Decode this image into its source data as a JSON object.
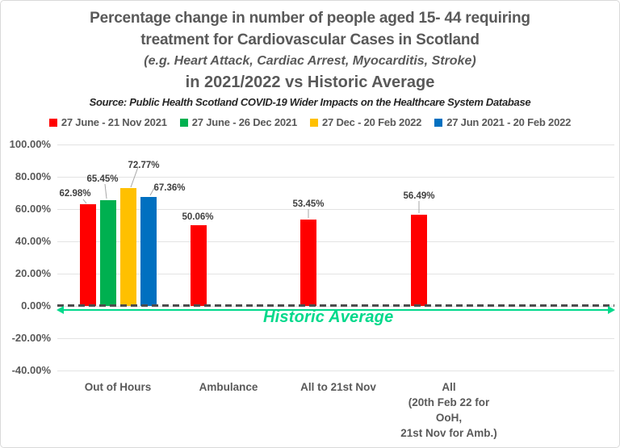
{
  "title": {
    "line1": "Percentage change in number of people aged 15- 44 requiring",
    "line2": "treatment for Cardiovascular Cases in Scotland",
    "line3": "(e.g. Heart Attack, Cardiac Arrest, Myocarditis, Stroke)",
    "line4": "in 2021/2022 vs Historic Average",
    "source": "Source: Public Health Scotland COVID-19 Wider Impacts on the Healthcare System Database"
  },
  "chart_data": {
    "type": "bar",
    "categories": [
      [
        "Out of Hours"
      ],
      [
        "Ambulance"
      ],
      [
        "All to 21st Nov"
      ],
      [
        "All",
        "(20th Feb 22 for",
        "OoH,",
        "21st Nov for Amb.)"
      ]
    ],
    "series": [
      {
        "name": "27 June - 21 Nov 2021",
        "color": "#ff0000",
        "values": [
          62.98,
          50.06,
          53.45,
          56.49
        ]
      },
      {
        "name": "27 June - 26 Dec 2021",
        "color": "#00b050",
        "values": [
          65.45,
          null,
          null,
          null
        ]
      },
      {
        "name": "27 Dec - 20 Feb 2022",
        "color": "#ffc000",
        "values": [
          72.77,
          null,
          null,
          null
        ]
      },
      {
        "name": "27 Jun 2021 - 20 Feb 2022",
        "color": "#0070c0",
        "values": [
          67.36,
          null,
          null,
          null
        ]
      }
    ],
    "data_labels": [
      "62.98%",
      "65.45%",
      "72.77%",
      "67.36%",
      "50.06%",
      "53.45%",
      "56.49%"
    ],
    "ylim": [
      -40,
      100
    ],
    "ytick_step": 20,
    "ytick_labels": [
      "100.00%",
      "80.00%",
      "60.00%",
      "40.00%",
      "20.00%",
      "0.00%",
      "-20.00%",
      "-40.00%"
    ],
    "grid": true,
    "legend_position": "top",
    "zero_line_style": "dashed",
    "reference_line": {
      "label": "Historic Average",
      "value": 0,
      "color": "#00d98b"
    }
  },
  "colors": {
    "title_text": "#595959",
    "gridline": "#e3e3e3",
    "zero_dash": "#4d4d4d",
    "reference_green": "#00d98b"
  }
}
